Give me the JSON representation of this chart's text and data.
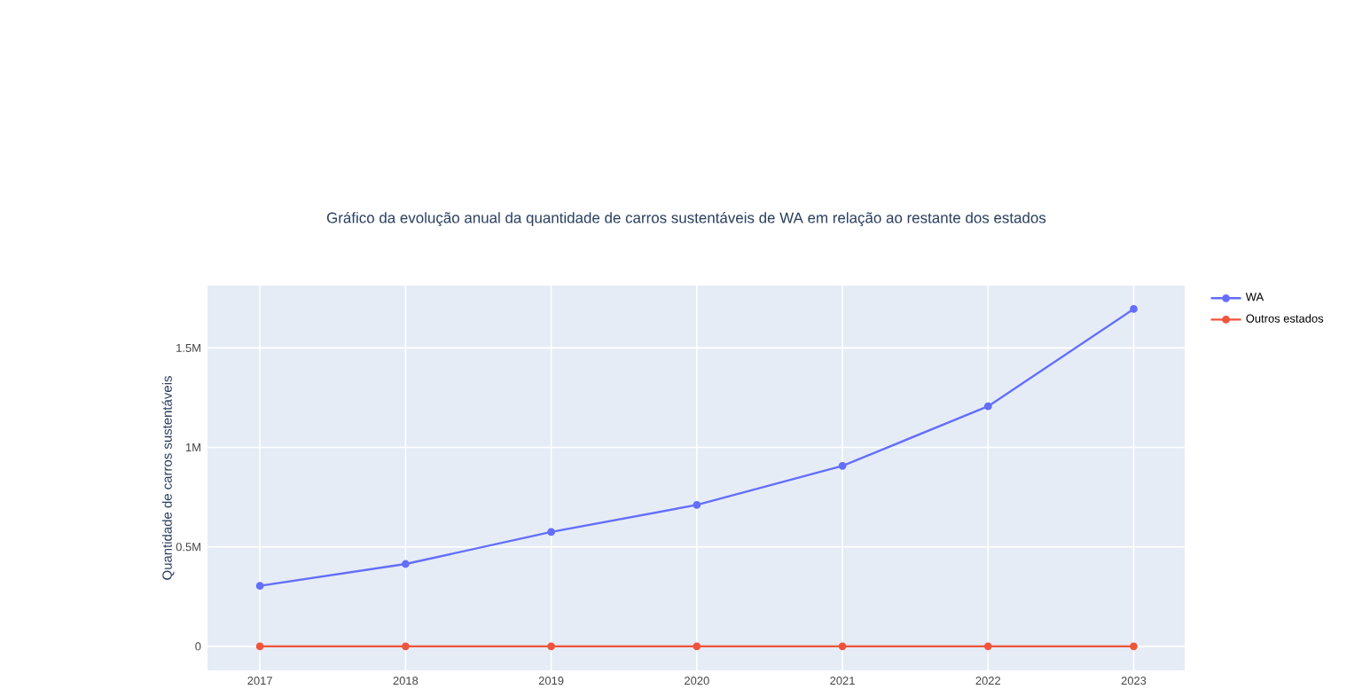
{
  "chart_data": {
    "type": "line",
    "title": "Gráfico da evolução anual da quantidade de carros sustentáveis de WA em relação ao restante dos estados",
    "ylabel": "Quantidade de carros sustentáveis",
    "x": [
      2017,
      2018,
      2019,
      2020,
      2021,
      2022,
      2023
    ],
    "series": [
      {
        "name": "WA",
        "color": "#636efa",
        "values": [
          304000,
          414000,
          575000,
          711000,
          907000,
          1207000,
          1696000
        ]
      },
      {
        "name": "Outros estados",
        "color": "#ef553b",
        "values": [
          0,
          0,
          0,
          0,
          0,
          0,
          0
        ]
      }
    ],
    "xlim": [
      2016.64,
      2023.35
    ],
    "ylim": [
      -121000,
      1814000
    ],
    "xticks": [
      2017,
      2018,
      2019,
      2020,
      2021,
      2022,
      2023
    ],
    "yticks": [
      0,
      {
        "value": 500000,
        "label": "0.5M"
      },
      {
        "value": 1000000,
        "label": "1M"
      },
      {
        "value": 1500000,
        "label": "1.5M"
      }
    ],
    "grid": true,
    "legend": "top right",
    "marker": "circle",
    "line_style": "solid"
  }
}
